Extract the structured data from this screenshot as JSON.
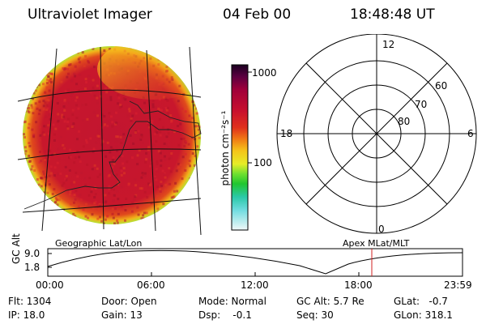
{
  "header": {
    "instrument": "Ultraviolet Imager",
    "date": "04 Feb 00",
    "time": "18:48:48 UT"
  },
  "colorbar": {
    "unit_label": "photon cm⁻²s⁻¹",
    "ticks": [
      "1000",
      "100"
    ]
  },
  "polar_plot": {
    "mlt_labels": [
      "12",
      "6",
      "0",
      "18"
    ],
    "lat_labels": [
      "60",
      "70",
      "80"
    ]
  },
  "map_labels": {
    "left": "Geographic Lat/Lon",
    "right": "Apex MLat/MLT"
  },
  "orbit_plot": {
    "ylabel": "GC Alt",
    "yticks": [
      "9.0",
      "1.8"
    ],
    "xticks": [
      "00:00",
      "06:00",
      "12:00",
      "18:00",
      "23:59"
    ]
  },
  "status": {
    "flt": "Flt: 1304",
    "ip": "IP: 18.0",
    "door": "Door: Open",
    "gain": "Gain: 13",
    "mode": "Mode: Normal",
    "dsp": "Dsp:    -0.1",
    "gc_alt": "GC Alt: 5.7 Re",
    "seq": "Seq: 30",
    "glat": "GLat:   -0.7",
    "glon": "GLon: 318.1"
  },
  "colors": {
    "auroral_red": "#c8102e",
    "marker_red": "#d12020"
  }
}
